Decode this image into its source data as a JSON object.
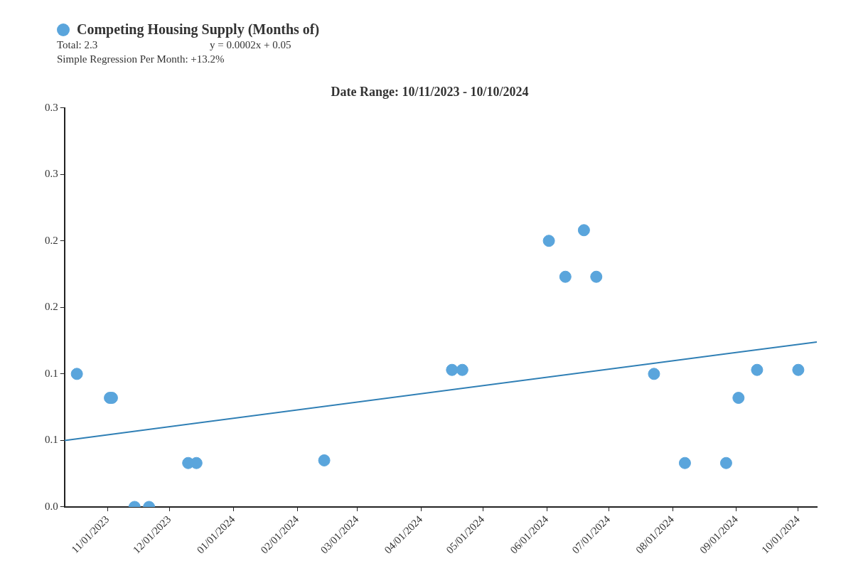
{
  "chart_data": {
    "type": "scatter",
    "title": "Date Range: 10/11/2023 - 10/10/2024",
    "annotations": [
      "Total: 2.3",
      "y = 0.0002x + 0.05",
      "Simple Regression Per Month: +13.2%"
    ],
    "legend": "top left",
    "grid": false,
    "xlim": [
      "2023-10-11",
      "2024-10-10"
    ],
    "xticks": [
      {
        "value": "2023-11-01",
        "label": "11/01/2023"
      },
      {
        "value": "2023-12-01",
        "label": "12/01/2023"
      },
      {
        "value": "2024-01-01",
        "label": "01/01/2024"
      },
      {
        "value": "2024-02-01",
        "label": "02/01/2024"
      },
      {
        "value": "2024-03-01",
        "label": "03/01/2024"
      },
      {
        "value": "2024-04-01",
        "label": "04/01/2024"
      },
      {
        "value": "2024-05-01",
        "label": "05/01/2024"
      },
      {
        "value": "2024-06-01",
        "label": "06/01/2024"
      },
      {
        "value": "2024-07-01",
        "label": "07/01/2024"
      },
      {
        "value": "2024-08-01",
        "label": "08/01/2024"
      },
      {
        "value": "2024-09-01",
        "label": "09/01/2024"
      },
      {
        "value": "2024-10-01",
        "label": "10/01/2024"
      }
    ],
    "ylim": [
      0,
      0.3
    ],
    "yticks": [
      {
        "value": 0,
        "label": "0.0"
      },
      {
        "value": 0.05,
        "label": "0.1"
      },
      {
        "value": 0.1,
        "label": "0.1"
      },
      {
        "value": 0.15,
        "label": "0.2"
      },
      {
        "value": 0.2,
        "label": "0.2"
      },
      {
        "value": 0.25,
        "label": "0.3"
      },
      {
        "value": 0.3,
        "label": "0.3"
      }
    ],
    "series": [
      {
        "name": "Competing Housing Supply (Months of)",
        "marker": "circle",
        "color": "#5aa5dc",
        "x": [
          "2023-10-17",
          "2023-11-02",
          "2023-11-03",
          "2023-11-14",
          "2023-11-21",
          "2023-12-10",
          "2023-12-14",
          "2024-02-14",
          "2024-04-16",
          "2024-04-21",
          "2024-06-02",
          "2024-06-10",
          "2024-06-19",
          "2024-06-25",
          "2024-07-23",
          "2024-08-07",
          "2024-08-27",
          "2024-09-02",
          "2024-09-11",
          "2024-10-01"
        ],
        "values": [
          0.1,
          0.082,
          0.082,
          0,
          0,
          0.033,
          0.033,
          0.035,
          0.103,
          0.103,
          0.2,
          0.173,
          0.208,
          0.173,
          0.1,
          0.033,
          0.033,
          0.082,
          0.103,
          0.103
        ]
      },
      {
        "type": "line",
        "marker": "none",
        "color": "#2f7fb5",
        "x": [
          "2023-10-11",
          "2024-10-10"
        ],
        "values": [
          0.05,
          0.124
        ]
      }
    ]
  }
}
